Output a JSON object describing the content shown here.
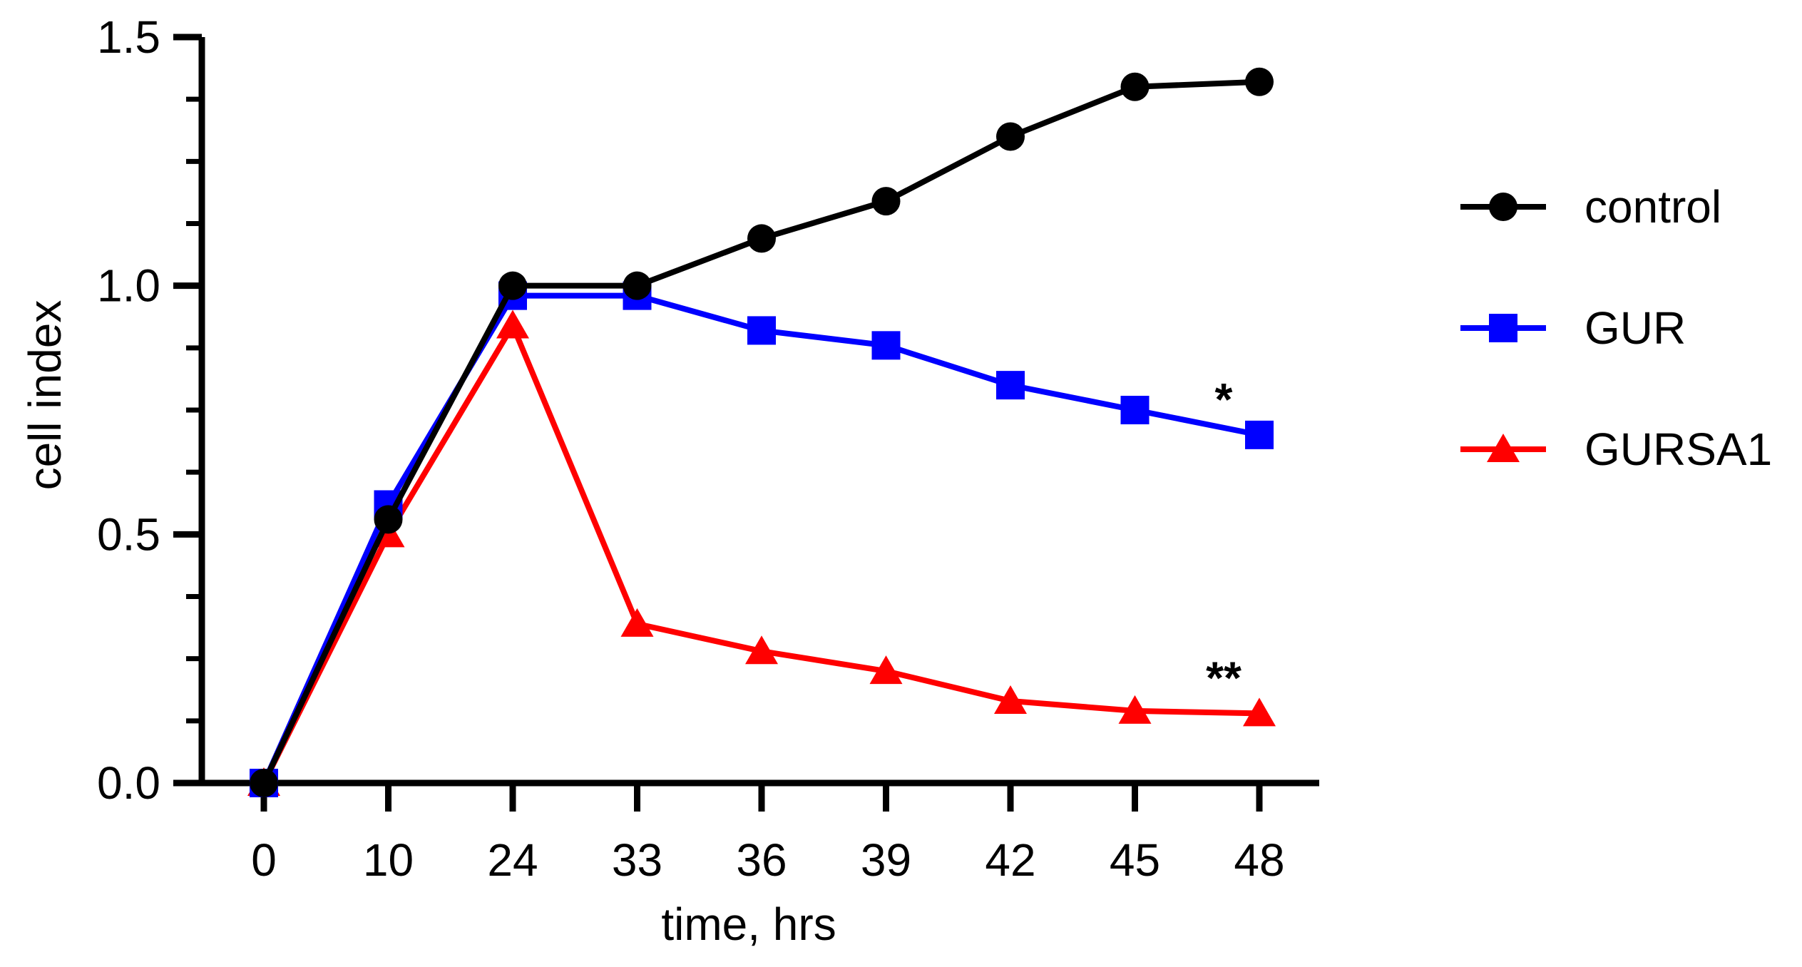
{
  "chart_data": {
    "type": "line",
    "title": "",
    "xlabel": "time, hrs",
    "ylabel": "cell index",
    "categories": [
      "0",
      "10",
      "24",
      "33",
      "36",
      "39",
      "42",
      "45",
      "48"
    ],
    "ylim": [
      0,
      1.5
    ],
    "yticks": [
      0.0,
      0.5,
      1.0,
      1.5
    ],
    "ytick_labels": [
      "0.0",
      "0.5",
      "1.0",
      "1.5"
    ],
    "y_minor_step": 0.125,
    "grid": false,
    "legend_position": "right",
    "series": [
      {
        "name": "control",
        "color": "#000000",
        "marker": "circle",
        "values": [
          0.0,
          0.53,
          1.0,
          1.0,
          1.095,
          1.17,
          1.3,
          1.4,
          1.41
        ]
      },
      {
        "name": "GUR",
        "color": "#0000ff",
        "marker": "square",
        "values": [
          0.0,
          0.56,
          0.98,
          0.98,
          0.91,
          0.88,
          0.8,
          0.75,
          0.7
        ]
      },
      {
        "name": "GURSA1",
        "color": "#ff0000",
        "marker": "triangle",
        "values": [
          0.0,
          0.5,
          0.92,
          0.32,
          0.265,
          0.225,
          0.165,
          0.145,
          0.14
        ]
      }
    ],
    "annotations": [
      {
        "text": "*",
        "series": "GUR",
        "category": "48"
      },
      {
        "text": "**",
        "series": "GURSA1",
        "category": "48"
      }
    ]
  }
}
